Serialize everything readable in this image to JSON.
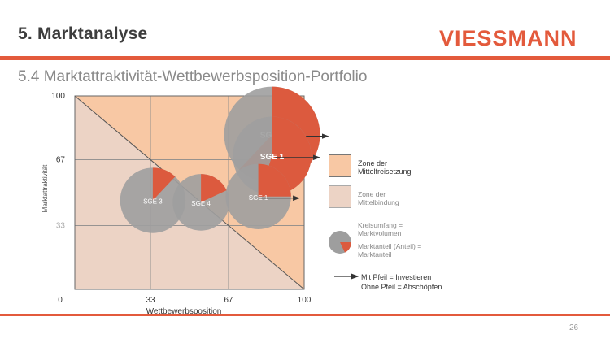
{
  "header": {
    "title": "5. Marktanalyse",
    "brand": "VIESSMANN"
  },
  "slide": {
    "subtitle": "5.4 Marktattraktivität-Wettbewerbsposition-Portfolio",
    "page_number": "26"
  },
  "colors": {
    "accent": "#e35a3c",
    "investment_zone": "#f8c8a4",
    "skim_zone": "#ecd3c5",
    "bubble_grey": "#9e9e9e",
    "bubble_red": "#dc5a3e"
  },
  "chart_data": {
    "type": "scatter",
    "title": "",
    "xlabel": "Wettbewerbsposition",
    "ylabel": "Marktattraktivität",
    "xlim": [
      0,
      100
    ],
    "ylim": [
      0,
      100
    ],
    "x_ticks": [
      "0",
      "33",
      "67",
      "100"
    ],
    "y_ticks": [
      "100",
      "67",
      "33"
    ],
    "series": [
      {
        "name": "SGE 2",
        "label": "SGE 2",
        "x": 86,
        "y": 80,
        "size": 22,
        "share": 0.62,
        "arrow": true
      },
      {
        "name": "SGE 1",
        "label": "SGE 1",
        "x": 86,
        "y": 69,
        "size": 18,
        "share": 0.55,
        "arrow": true
      },
      {
        "name": "SGE",
        "label": "SGE 1",
        "x": 80,
        "y": 48,
        "size": 15,
        "share": 0.25,
        "arrow": true
      },
      {
        "name": "SGE",
        "label": "SGE 4",
        "x": 55,
        "y": 45,
        "size": 13,
        "share": 0.18,
        "arrow": false
      },
      {
        "name": "SGE",
        "label": "SGE 3",
        "x": 34,
        "y": 46,
        "size": 15,
        "share": 0.12,
        "arrow": false
      }
    ],
    "zones": [
      {
        "name": "investment",
        "label": "Zone der Mittelfreisetzung"
      },
      {
        "name": "skim",
        "label": "Zone der Mittelbindung"
      }
    ],
    "legend": {
      "zone_invest": "Zone der Mittelfreisetzung",
      "zone_skim": "Zone der Mittelbindung",
      "bubble_size": "Kreisumfang = Marktvolumen",
      "bubble_share": "Marktanteil (Anteil) = Marktanteil",
      "arrow_note_1": "Mit Pfeil = Investieren",
      "arrow_note_2": "Ohne Pfeil = Abschöpfen"
    }
  }
}
